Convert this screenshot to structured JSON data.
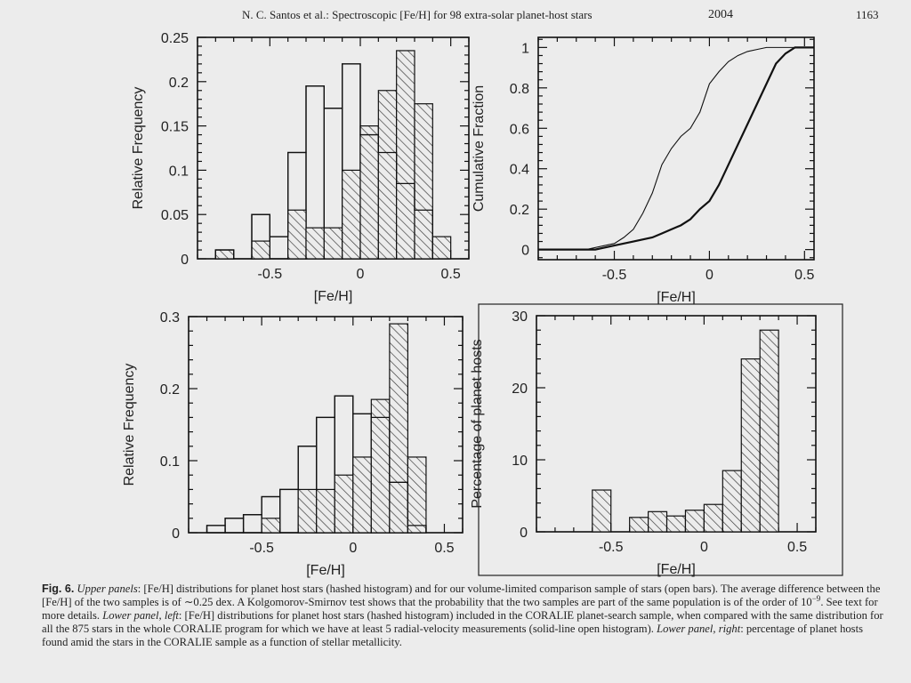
{
  "header": {
    "running_title": "N. C. Santos et al.: Spectroscopic [Fe/H] for 98 extra-solar planet-host stars",
    "year": "2004",
    "page_number": "1163"
  },
  "chart_data": [
    {
      "type": "histogram",
      "position": "upper-left",
      "xlabel": "[Fe/H]",
      "ylabel": "Relative Frequency",
      "xlim": [
        -0.9,
        0.6
      ],
      "ylim": [
        0,
        0.25
      ],
      "xticks": [
        "-0.5",
        "0",
        "0.5"
      ],
      "yticks": [
        "0",
        "0.05",
        "0.1",
        "0.15",
        "0.2",
        "0.25"
      ],
      "bin_edges": [
        -0.8,
        -0.7,
        -0.6,
        -0.5,
        -0.4,
        -0.3,
        -0.2,
        -0.1,
        0.0,
        0.1,
        0.2,
        0.3,
        0.4,
        0.5
      ],
      "series": [
        {
          "style": "open",
          "values": [
            0.01,
            0,
            0.05,
            0.025,
            0.12,
            0.195,
            0.17,
            0.22,
            0.14,
            0.12,
            0.085,
            0.055,
            0
          ]
        },
        {
          "style": "hashed",
          "values": [
            0.01,
            0,
            0.02,
            0,
            0.055,
            0.035,
            0.035,
            0.1,
            0.15,
            0.19,
            0.235,
            0.175,
            0.025
          ]
        }
      ]
    },
    {
      "type": "line",
      "position": "upper-right",
      "xlabel": "[Fe/H]",
      "ylabel": "Cumulative Fraction",
      "xlim": [
        -0.9,
        0.55
      ],
      "ylim": [
        -0.05,
        1.05
      ],
      "xticks": [
        "-0.5",
        "0",
        "0.5"
      ],
      "yticks": [
        "0",
        "0.2",
        "0.4",
        "0.6",
        "0.8",
        "1"
      ],
      "series": [
        {
          "style": "thin",
          "x": [
            -0.9,
            -0.65,
            -0.55,
            -0.5,
            -0.45,
            -0.4,
            -0.35,
            -0.3,
            -0.25,
            -0.2,
            -0.15,
            -0.1,
            -0.05,
            0.0,
            0.05,
            0.1,
            0.15,
            0.2,
            0.25,
            0.3,
            0.35,
            0.55
          ],
          "y": [
            0,
            0,
            0.02,
            0.03,
            0.06,
            0.1,
            0.18,
            0.28,
            0.42,
            0.5,
            0.56,
            0.6,
            0.68,
            0.82,
            0.88,
            0.93,
            0.96,
            0.98,
            0.99,
            1.0,
            1.0,
            1.0
          ]
        },
        {
          "style": "thick",
          "x": [
            -0.9,
            -0.6,
            -0.5,
            -0.4,
            -0.3,
            -0.25,
            -0.2,
            -0.15,
            -0.1,
            -0.05,
            0.0,
            0.05,
            0.1,
            0.15,
            0.2,
            0.25,
            0.3,
            0.35,
            0.4,
            0.45,
            0.5,
            0.55
          ],
          "y": [
            0,
            0,
            0.02,
            0.04,
            0.06,
            0.08,
            0.1,
            0.12,
            0.15,
            0.2,
            0.24,
            0.32,
            0.42,
            0.52,
            0.62,
            0.72,
            0.82,
            0.92,
            0.97,
            1.0,
            1.0,
            1.0
          ]
        }
      ]
    },
    {
      "type": "histogram",
      "position": "lower-left",
      "xlabel": "[Fe/H]",
      "ylabel": "Relative Frequency",
      "xlim": [
        -0.9,
        0.6
      ],
      "ylim": [
        0,
        0.3
      ],
      "xticks": [
        "-0.5",
        "0",
        "0.5"
      ],
      "yticks": [
        "0",
        "0.1",
        "0.2",
        "0.3"
      ],
      "bin_edges": [
        -0.8,
        -0.7,
        -0.6,
        -0.5,
        -0.4,
        -0.3,
        -0.2,
        -0.1,
        0.0,
        0.1,
        0.2,
        0.3,
        0.4
      ],
      "series": [
        {
          "style": "open",
          "values": [
            0.01,
            0.02,
            0.025,
            0.05,
            0.06,
            0.12,
            0.16,
            0.19,
            0.165,
            0.16,
            0.07,
            0.01
          ]
        },
        {
          "style": "hashed",
          "values": [
            0,
            0,
            0,
            0.02,
            0,
            0.06,
            0.06,
            0.08,
            0.105,
            0.185,
            0.29,
            0.105
          ]
        }
      ]
    },
    {
      "type": "histogram",
      "position": "lower-right",
      "xlabel": "[Fe/H]",
      "ylabel": "Percentage of planet hosts",
      "xlim": [
        -0.9,
        0.6
      ],
      "ylim": [
        0,
        30
      ],
      "xticks": [
        "-0.5",
        "0",
        "0.5"
      ],
      "yticks": [
        "0",
        "10",
        "20",
        "30"
      ],
      "bin_edges": [
        -0.6,
        -0.5,
        -0.4,
        -0.3,
        -0.2,
        -0.1,
        0.0,
        0.1,
        0.2,
        0.3,
        0.4
      ],
      "series": [
        {
          "style": "hashed",
          "values": [
            5.8,
            0,
            2,
            2.8,
            2.2,
            3,
            3.8,
            8.5,
            24,
            28
          ]
        }
      ]
    }
  ],
  "caption": {
    "fig_label": "Fig. 6.",
    "text1_em": "Upper panels",
    "text1": ": [Fe/H] distributions for planet host stars (hashed histogram) and for our volume-limited comparison sample of stars (open bars). The average difference between the [Fe/H] of the two samples is of ∼0.25 dex. A Kolgomorov-Smirnov test shows that the probability that the two samples are part of the same population is of the order of 10",
    "exponent": "−9",
    "text2": ". See text for more details. ",
    "text3_em": "Lower panel, left",
    "text3": ": [Fe/H] distributions for planet host stars (hashed histogram) included in the CORALIE planet-search sample, when compared with the same distribution for all the 875 stars in the whole CORALIE program for which we have at least 5 radial-velocity measurements (solid-line open histogram). ",
    "text4_em": "Lower panel, right",
    "text4": ": percentage of planet hosts found amid the stars in the CORALIE sample as a function of stellar metallicity."
  }
}
